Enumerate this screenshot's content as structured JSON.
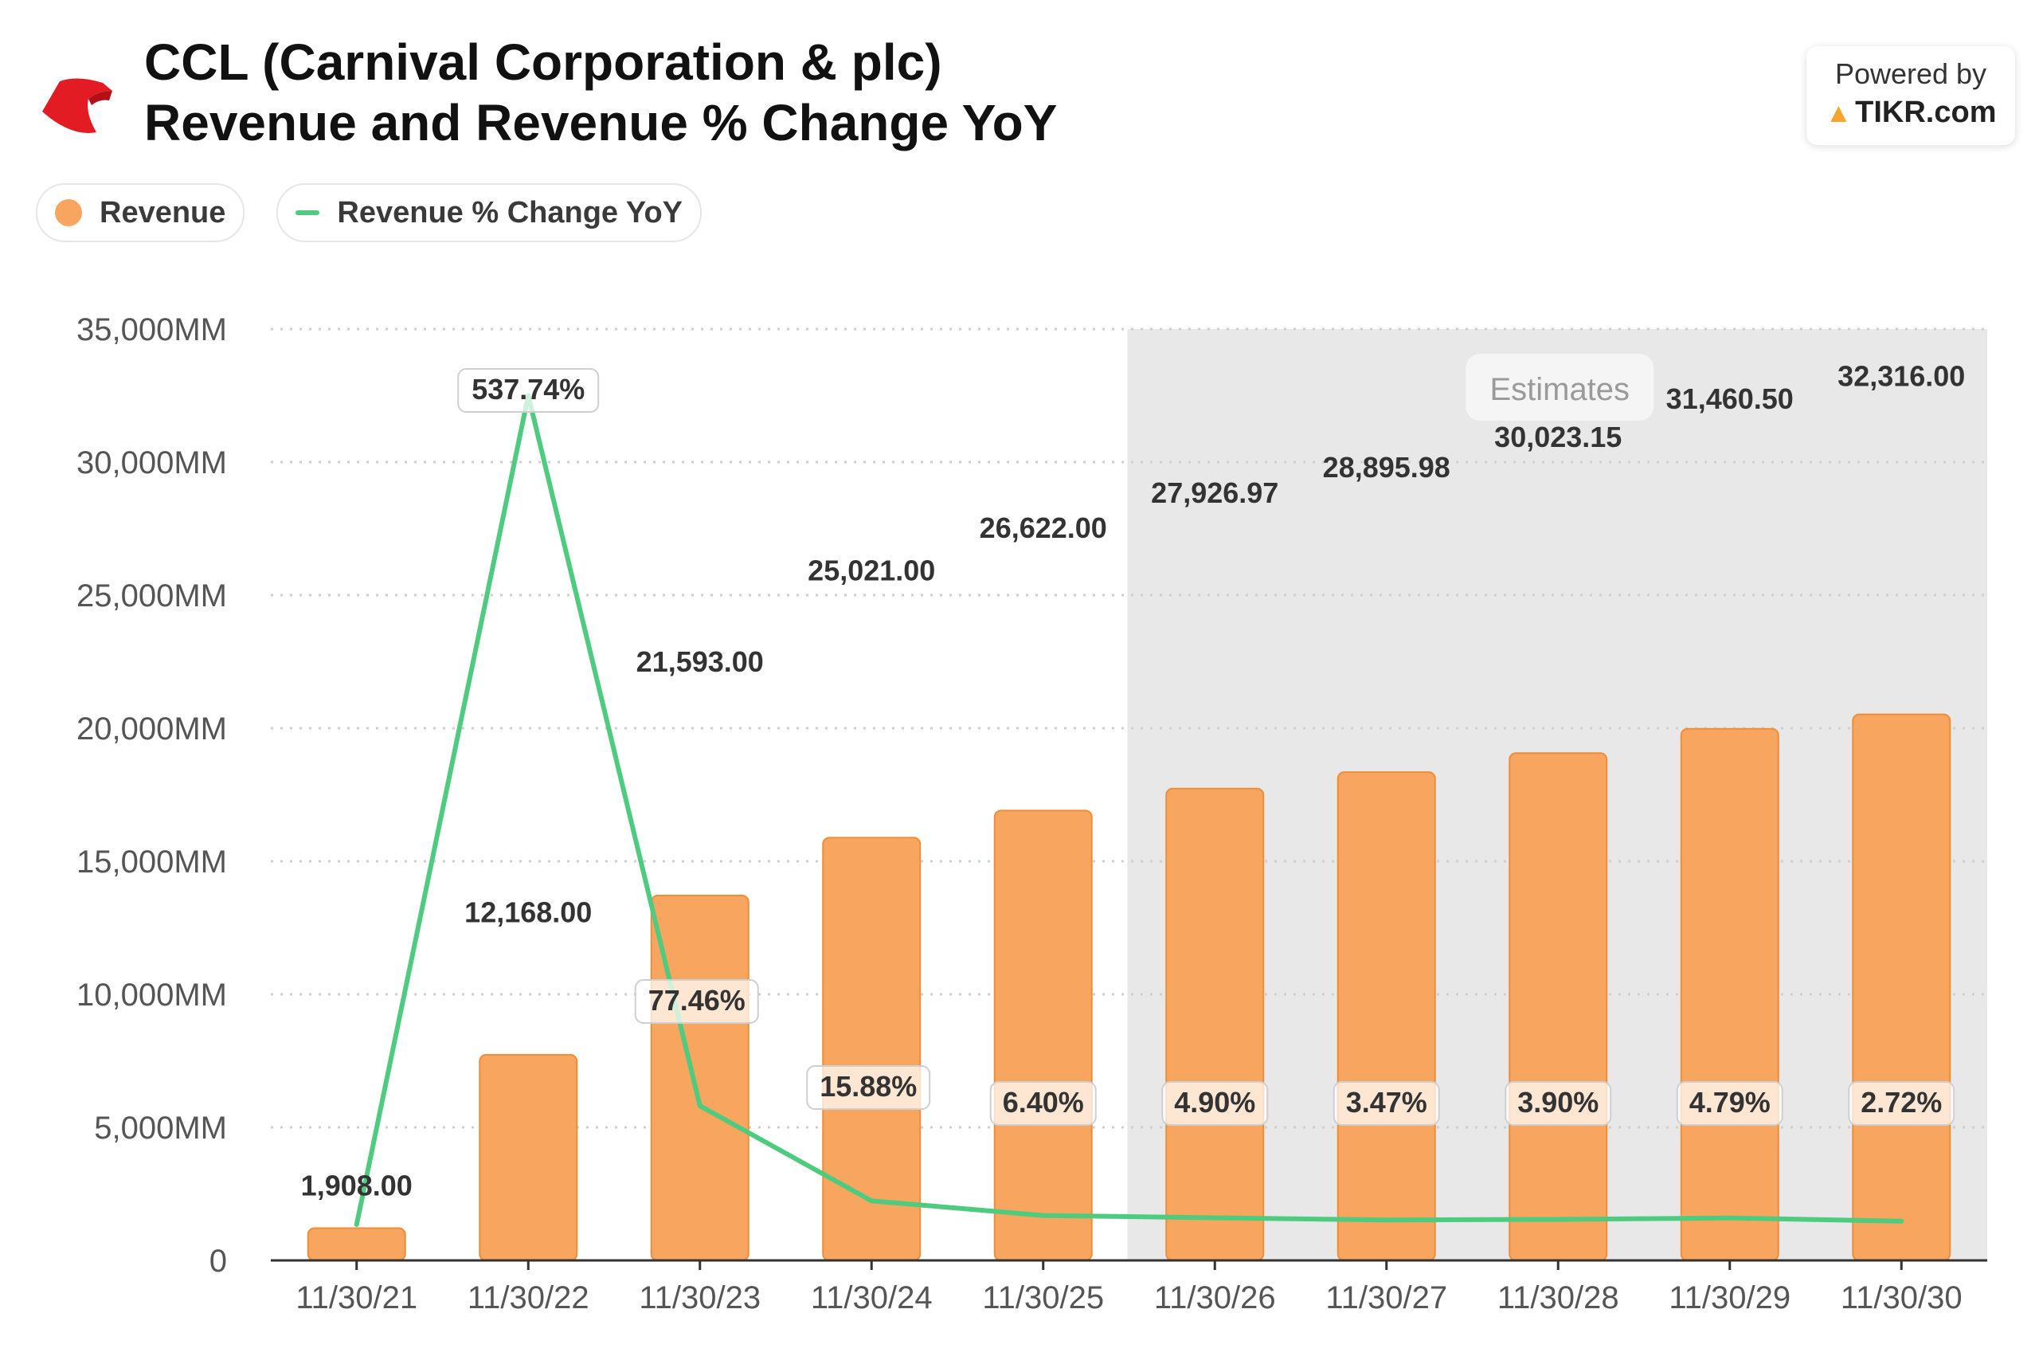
{
  "header": {
    "title_line1": "CCL (Carnival Corporation & plc)",
    "title_line2": "Revenue and Revenue % Change YoY"
  },
  "branding": {
    "powered_by": "Powered by",
    "site": "TIKR.com"
  },
  "legend": {
    "revenue": "Revenue",
    "yoy": "Revenue % Change YoY"
  },
  "colors": {
    "bar": "#f7a55f",
    "bar_border": "#ec8e3a",
    "line": "#4fcb7f",
    "estimate_band": "#e8e8e8",
    "logo": "#e31b23"
  },
  "chart_data": {
    "type": "bar",
    "categories": [
      "11/30/21",
      "11/30/22",
      "11/30/23",
      "11/30/24",
      "11/30/25",
      "11/30/26",
      "11/30/27",
      "11/30/28",
      "11/30/29",
      "11/30/30"
    ],
    "series": [
      {
        "name": "Revenue",
        "type": "bar",
        "values": [
          1908.0,
          12168.0,
          21593.0,
          25021.0,
          26622.0,
          27926.97,
          28895.98,
          30023.15,
          31460.5,
          32316.0
        ],
        "labels": [
          "1,908.00",
          "12,168.00",
          "21,593.00",
          "25,021.00",
          "26,622.00",
          "27,926.97",
          "28,895.98",
          "30,023.15",
          "31,460.50",
          "32,316.00"
        ]
      },
      {
        "name": "Revenue % Change YoY",
        "type": "line",
        "values": [
          0.5,
          537.74,
          77.46,
          15.88,
          6.4,
          4.9,
          3.47,
          3.9,
          4.79,
          2.72
        ],
        "labels": [
          "",
          "537.74%",
          "77.46%",
          "15.88%",
          "6.40%",
          "4.90%",
          "3.47%",
          "3.90%",
          "4.79%",
          "2.72%"
        ]
      }
    ],
    "y_ticks": [
      "0",
      "5,000MM",
      "10,000MM",
      "15,000MM",
      "20,000MM",
      "25,000MM",
      "30,000MM",
      "35,000MM"
    ],
    "ylim": [
      0,
      35000
    ],
    "estimates_from_index": 5,
    "estimates_label": "Estimates",
    "grid": "horizontal-dotted",
    "legend_position": "top-left"
  }
}
